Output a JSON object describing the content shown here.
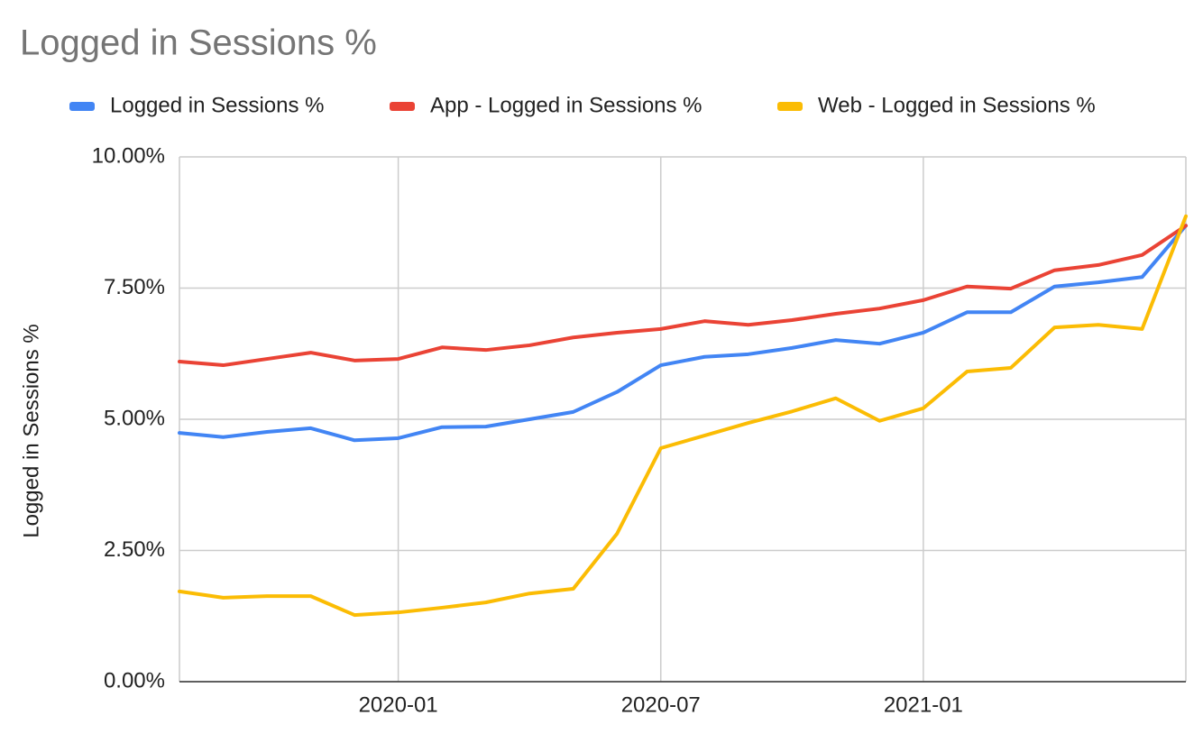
{
  "chart_data": {
    "type": "line",
    "title": "Logged in Sessions %",
    "y_label": "Logged in Sessions %",
    "x": [
      "2019-08",
      "2019-09",
      "2019-10",
      "2019-11",
      "2019-12",
      "2020-01",
      "2020-02",
      "2020-03",
      "2020-04",
      "2020-05",
      "2020-06",
      "2020-07",
      "2020-08",
      "2020-09",
      "2020-10",
      "2020-11",
      "2020-12",
      "2021-01",
      "2021-02",
      "2021-03",
      "2021-04",
      "2021-05",
      "2021-06",
      "2021-07"
    ],
    "xlim": [
      "2019-08",
      "2021-07"
    ],
    "xticks": [
      "2020-01",
      "2020-07",
      "2021-01"
    ],
    "ylim": [
      0,
      10
    ],
    "yticks": [
      {
        "value": 0,
        "label": "0.00%"
      },
      {
        "value": 2.5,
        "label": "2.50%"
      },
      {
        "value": 5,
        "label": "5.00%"
      },
      {
        "value": 7.5,
        "label": "7.50%"
      },
      {
        "value": 10,
        "label": "10.00%"
      }
    ],
    "grid": true,
    "legend": "top",
    "series": [
      {
        "name": "Logged in Sessions %",
        "color": "#4285f4",
        "values": [
          4.74,
          4.66,
          4.76,
          4.83,
          4.6,
          4.64,
          4.85,
          4.86,
          5.0,
          5.14,
          5.52,
          6.03,
          6.19,
          6.24,
          6.36,
          6.51,
          6.44,
          6.65,
          7.04,
          7.04,
          7.53,
          7.61,
          7.71,
          8.69
        ]
      },
      {
        "name": "App - Logged in Sessions %",
        "color": "#ea4335",
        "values": [
          6.1,
          6.03,
          6.15,
          6.27,
          6.12,
          6.15,
          6.37,
          6.32,
          6.41,
          6.56,
          6.65,
          6.72,
          6.87,
          6.8,
          6.89,
          7.01,
          7.11,
          7.27,
          7.53,
          7.49,
          7.84,
          7.94,
          8.13,
          8.69
        ]
      },
      {
        "name": "Web - Logged in Sessions %",
        "color": "#fbbc04",
        "values": [
          1.72,
          1.6,
          1.63,
          1.63,
          1.27,
          1.32,
          1.41,
          1.51,
          1.68,
          1.77,
          2.82,
          4.45,
          4.69,
          4.93,
          5.15,
          5.4,
          4.97,
          5.21,
          5.91,
          5.98,
          6.75,
          6.8,
          6.72,
          8.87
        ]
      }
    ]
  }
}
